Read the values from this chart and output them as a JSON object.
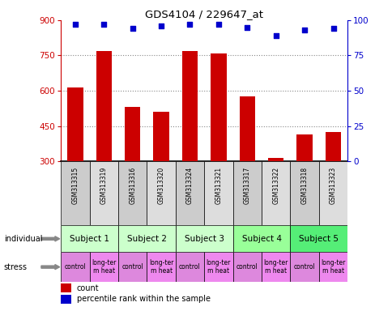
{
  "title": "GDS4104 / 229647_at",
  "samples": [
    "GSM313315",
    "GSM313319",
    "GSM313316",
    "GSM313320",
    "GSM313324",
    "GSM313321",
    "GSM313317",
    "GSM313322",
    "GSM313318",
    "GSM313323"
  ],
  "counts": [
    615,
    770,
    530,
    510,
    770,
    760,
    575,
    315,
    415,
    425
  ],
  "percentiles": [
    97,
    97,
    94,
    96,
    97,
    97,
    95,
    89,
    93,
    94
  ],
  "ylim_left": [
    300,
    900
  ],
  "yticks_left": [
    300,
    450,
    600,
    750,
    900
  ],
  "ylim_right": [
    0,
    100
  ],
  "yticks_right": [
    0,
    25,
    50,
    75,
    100
  ],
  "subjects": [
    {
      "label": "Subject 1",
      "cols": [
        0,
        1
      ]
    },
    {
      "label": "Subject 2",
      "cols": [
        2,
        3
      ]
    },
    {
      "label": "Subject 3",
      "cols": [
        4,
        5
      ]
    },
    {
      "label": "Subject 4",
      "cols": [
        6,
        7
      ]
    },
    {
      "label": "Subject 5",
      "cols": [
        8,
        9
      ]
    }
  ],
  "subject_colors": [
    "#ccffcc",
    "#ccffcc",
    "#ccffcc",
    "#99ff99",
    "#55ee77"
  ],
  "stress_labels": [
    "control",
    "long-ter\nm heat",
    "control",
    "long-ter\nm heat",
    "control",
    "long-ter\nm heat",
    "control",
    "long-ter\nm heat",
    "control",
    "long-ter\nm heat"
  ],
  "stress_colors": [
    "#dd88dd",
    "#ee88ee",
    "#dd88dd",
    "#ee88ee",
    "#dd88dd",
    "#ee88ee",
    "#dd88dd",
    "#ee88ee",
    "#dd88dd",
    "#ee88ee"
  ],
  "bar_color": "#cc0000",
  "dot_color": "#0000cc",
  "grid_color": "#888888",
  "left_tick_color": "#cc0000",
  "right_tick_color": "#0000cc",
  "gsm_bg_even": "#cccccc",
  "gsm_bg_odd": "#dddddd",
  "legend_count_color": "#cc0000",
  "legend_pct_color": "#0000cc",
  "grid_yticks": [
    450,
    600,
    750
  ]
}
